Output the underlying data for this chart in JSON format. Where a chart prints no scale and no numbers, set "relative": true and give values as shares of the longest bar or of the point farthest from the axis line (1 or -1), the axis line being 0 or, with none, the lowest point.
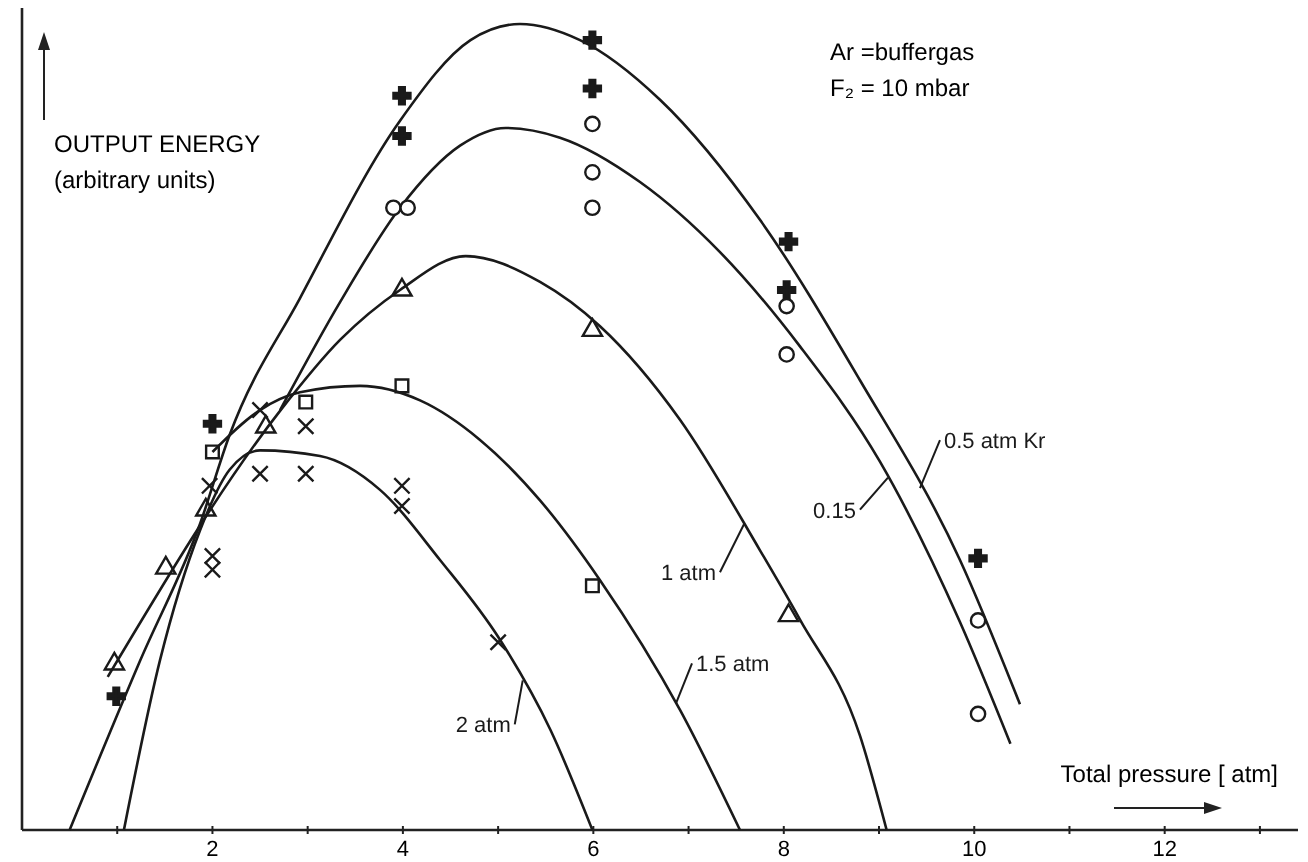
{
  "chart_data": {
    "type": "line",
    "relative": true,
    "xlabel": "Total pressure [ atm]",
    "ylabel": "OUTPUT ENERGY\n(arbitrary units)",
    "annotations": [
      "Ar =buffergas",
      "F₂ = 10 mbar"
    ],
    "xlim": [
      0,
      13.4
    ],
    "xticks": [
      {
        "value": 1,
        "label": null
      },
      2,
      {
        "value": 3,
        "label": null
      },
      4,
      {
        "value": 5,
        "label": null
      },
      6,
      {
        "value": 7,
        "label": null
      },
      8,
      {
        "value": 9,
        "label": null
      },
      10,
      {
        "value": 11,
        "label": null
      },
      12,
      {
        "value": 13,
        "label": null
      }
    ],
    "grid": false,
    "line_style": "solid",
    "series": [
      {
        "name": "0.5 atm Kr",
        "color": "#1a1a1a",
        "x": [
          0.5,
          1.24,
          1.87,
          2.18,
          2.92,
          3.97,
          4.71,
          5.23,
          5.86,
          6.7,
          7.75,
          8.8,
          9.85,
          10.48
        ],
        "values": [
          0,
          0.21,
          0.38,
          0.49,
          0.66,
          0.88,
          0.98,
          1,
          0.98,
          0.906,
          0.757,
          0.558,
          0.335,
          0.156
        ]
      },
      {
        "name": "0.15",
        "color": "#1a1a1a",
        "x": [
          2.71,
          3.34,
          3.97,
          4.6,
          5.08,
          5.65,
          6.49,
          7.33,
          8.17,
          9.01,
          9.85,
          10.38
        ],
        "values": [
          0.521,
          0.655,
          0.772,
          0.849,
          0.871,
          0.859,
          0.804,
          0.717,
          0.6,
          0.457,
          0.258,
          0.107
        ]
      },
      {
        "name": "1 atm",
        "color": "#1a1a1a",
        "x": [
          0.9,
          2.71,
          3.34,
          3.97,
          4.66,
          5.44,
          6.07,
          6.91,
          7.75,
          8.17,
          8.8,
          9.08
        ],
        "values": [
          0.19,
          0.52,
          0.608,
          0.67,
          0.712,
          0.68,
          0.625,
          0.509,
          0.347,
          0.261,
          0.117,
          0
        ]
      },
      {
        "name": "1.5 atm",
        "color": "#1a1a1a",
        "x": [
          2,
          2.5,
          2.92,
          3.55,
          4.18,
          4.81,
          5.44,
          6.07,
          6.91,
          7.54
        ],
        "values": [
          0.469,
          0.521,
          0.543,
          0.551,
          0.533,
          0.484,
          0.409,
          0.31,
          0.149,
          0
        ]
      },
      {
        "name": "2 atm",
        "color": "#1a1a1a",
        "x": [
          1.07,
          1.45,
          1.87,
          2.18,
          2.5,
          3.13,
          3.76,
          4.39,
          5.02,
          5.55,
          5.99
        ],
        "values": [
          0,
          0.211,
          0.372,
          0.447,
          0.471,
          0.464,
          0.422,
          0.335,
          0.236,
          0.124,
          0
        ]
      },
      {
        "type": "scatter",
        "marker": "cross",
        "color": "#1a1a1a",
        "x": [
          0.99,
          2,
          3.99,
          3.99,
          5.99,
          5.99,
          8.05,
          8.03,
          10.04
        ],
        "values": [
          0.166,
          0.504,
          0.911,
          0.861,
          0.98,
          0.92,
          0.73,
          0.67,
          0.337
        ]
      },
      {
        "type": "scatter",
        "marker": "circle",
        "color": "#1a1a1a",
        "x": [
          3.9,
          4.05,
          5.99,
          5.99,
          5.99,
          8.03,
          8.03,
          10.04,
          10.04
        ],
        "values": [
          0.772,
          0.772,
          0.876,
          0.816,
          0.772,
          0.65,
          0.59,
          0.26,
          0.144
        ]
      },
      {
        "type": "scatter",
        "marker": "triangle",
        "color": "#1a1a1a",
        "x": [
          0.97,
          1.51,
          1.93,
          2.56,
          3.99,
          5.99,
          8.05
        ],
        "values": [
          0.206,
          0.325,
          0.397,
          0.5,
          0.67,
          0.62,
          0.266
        ]
      },
      {
        "type": "scatter",
        "marker": "square",
        "color": "#1a1a1a",
        "x": [
          2,
          2.98,
          3.99,
          5.99
        ],
        "values": [
          0.469,
          0.531,
          0.551,
          0.303
        ]
      },
      {
        "type": "scatter",
        "marker": "x",
        "color": "#1a1a1a",
        "x": [
          2,
          2,
          1.97,
          2.5,
          2.5,
          2.98,
          2.98,
          3.99,
          3.99,
          5
        ],
        "values": [
          0.34,
          0.323,
          0.427,
          0.521,
          0.442,
          0.501,
          0.442,
          0.427,
          0.402,
          0.233
        ]
      }
    ]
  }
}
